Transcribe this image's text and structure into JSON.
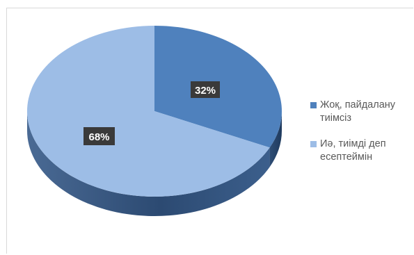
{
  "chart_data": {
    "type": "pie",
    "title": "",
    "slices": [
      {
        "label": "Жоқ, пайдалану тиімсіз",
        "value": 32,
        "display": "32%",
        "color": "#4f81bd"
      },
      {
        "label": "Иә, тиімді деп есептеймін",
        "value": 68,
        "display": "68%",
        "color": "#9dbde6"
      }
    ],
    "style_3d": true,
    "data_labels": "inside, white text on dark box",
    "legend_position": "right"
  },
  "legend": {
    "items": [
      {
        "line1": "Жоқ, пайдалану",
        "line2": "тиімсіз",
        "color": "#4f81bd"
      },
      {
        "line1": "Иә, тиімді деп",
        "line2": "есептеймін",
        "color": "#9dbde6"
      }
    ]
  }
}
